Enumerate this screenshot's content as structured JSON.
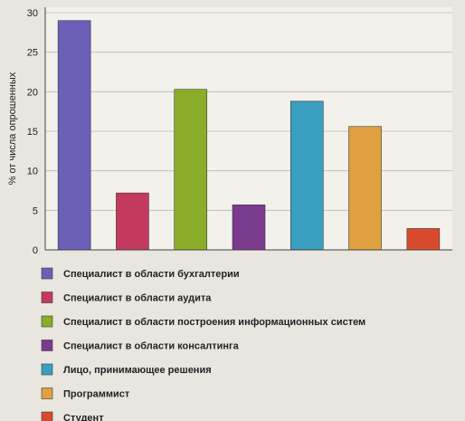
{
  "chart_data": {
    "type": "bar",
    "ylabel": "% от числа опрошенных",
    "xlabel": "",
    "ylim": [
      0,
      30
    ],
    "yticks": [
      0,
      5,
      10,
      15,
      20,
      25,
      30
    ],
    "grid": true,
    "legend_position": "bottom",
    "categories": [
      "Специалист в области бухгалтерии",
      "Специалист в области аудита",
      "Специалист в области построения информационных систем",
      "Специалист в области консалтинга",
      "Лицо, принимающее решения",
      "Программист",
      "Студент"
    ],
    "values": [
      29,
      7.2,
      20.3,
      5.7,
      18.8,
      15.6,
      2.7
    ],
    "colors": [
      "#6b5fb8",
      "#c43a5e",
      "#8aae2a",
      "#7a3a8e",
      "#3a9ec0",
      "#e0a040",
      "#d84a2e"
    ]
  }
}
